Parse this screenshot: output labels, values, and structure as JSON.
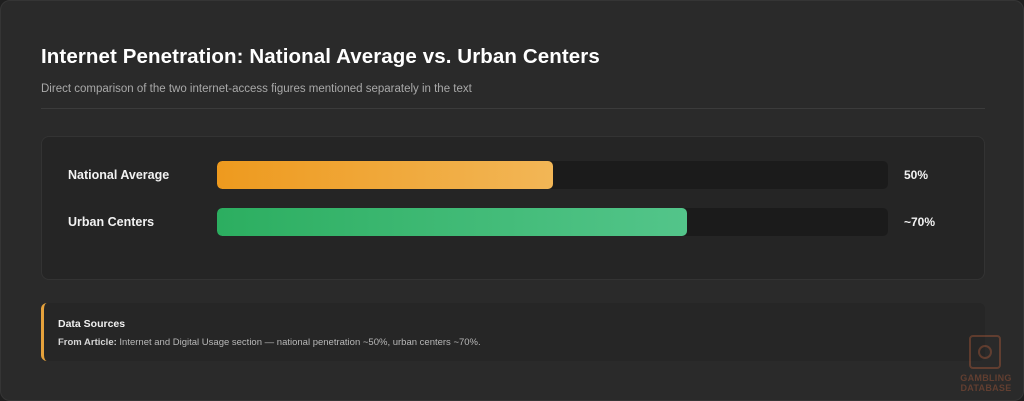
{
  "header": {
    "title": "Internet Penetration: National Average vs. Urban Centers",
    "subtitle": "Direct comparison of the two internet-access figures mentioned separately in the text"
  },
  "chart_data": {
    "type": "bar",
    "orientation": "horizontal",
    "categories": [
      "National Average",
      "Urban Centers"
    ],
    "values": [
      50,
      70
    ],
    "value_labels": [
      "50%",
      "~70%"
    ],
    "unit": "%",
    "xlim": [
      0,
      100
    ],
    "colors": [
      [
        "#ee9a1e",
        "#f2b656"
      ],
      [
        "#2cae60",
        "#53c58a"
      ]
    ],
    "track_color": "#1b1b1b"
  },
  "sources": {
    "title": "Data Sources",
    "key": "From Article:",
    "text": " Internet and Digital Usage section — national penetration ~50%, urban centers ~70%."
  },
  "watermark": {
    "line1": "GAMBLING",
    "line2": "DATABASE",
    "color": "#c8643c"
  }
}
